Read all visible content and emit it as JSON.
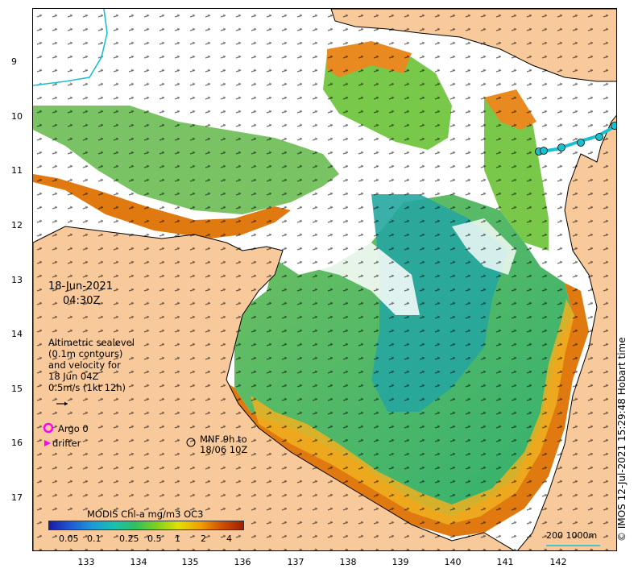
{
  "map": {
    "date_label": "18-Jun-2021",
    "time_label": "04:30Z",
    "y_ticks": [
      "9",
      "10",
      "11",
      "12",
      "13",
      "14",
      "15",
      "16",
      "17"
    ],
    "x_ticks": [
      "133",
      "134",
      "135",
      "136",
      "137",
      "138",
      "139",
      "140",
      "141",
      "142"
    ],
    "velocity_legend": {
      "lines": [
        "Altimetric sealevel",
        "(0.1m contours)",
        "and velocity for",
        "18 Jun 04Z",
        "0.5m/s (1kt 12h)"
      ]
    },
    "argo_label": "Argo 0",
    "drifter_label": "drifter",
    "mnf_lines": [
      "MNF 9h to",
      "18/06 10Z"
    ],
    "scale_bar_label": "200  1000m",
    "credit": "© IMOS 12-Jul-2021 15:29:48 Hobart time",
    "colors": {
      "land": "#f8c99a",
      "argo_marker": "#ff00ff",
      "drifter_marker": "#ff00ff",
      "track": "#19c0d0",
      "ocean_gap": "#ffffff"
    }
  },
  "colorbar": {
    "title": "MODIS Chl-a mg/m3 OC3",
    "ticks": [
      "0.05",
      "0.1",
      "0.25",
      "0.5",
      "1",
      "2",
      "4"
    ],
    "colors": [
      "#1a1aa8",
      "#1f5ad8",
      "#1a9ad8",
      "#18c0b0",
      "#30c060",
      "#80d020",
      "#e0e000",
      "#f0a000",
      "#d05000",
      "#a02000"
    ]
  }
}
